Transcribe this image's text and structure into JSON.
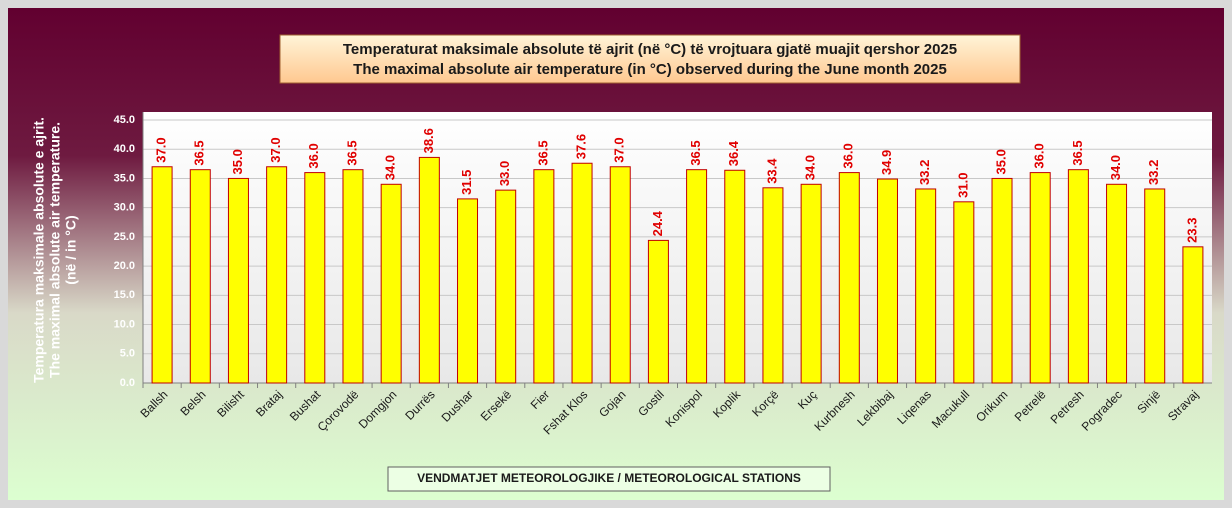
{
  "chart_data": {
    "type": "bar",
    "title": [
      "Temperaturat maksimale absolute të ajrit (në °C) të vrojtuara gjatë muajit qershor 2025",
      "The maximal absolute air temperature (in °C) observed during the June  month 2025"
    ],
    "y_label": [
      "Temperatura maksimale absolute e ajrit.",
      "The maximal absolute air temperature.",
      "(në / in °C)"
    ],
    "x_label": "VENDMATJET  METEOROLOGJIKE / METEOROLOGICAL STATIONS",
    "categories": [
      "Ballsh",
      "Belsh",
      "Bilisht",
      "Brataj",
      "Bushat",
      "Çorovodë",
      "Domgjon",
      "Durrës",
      "Dushar",
      "Ersekë",
      "Fier",
      "Fshat Klos",
      "Gojan",
      "Gostil",
      "Konispol",
      "Koplik",
      "Korçë",
      "Kuç",
      "Kurbnesh",
      "Lekbibaj",
      "Liqenas",
      "Macukull",
      "Orikum",
      "Petrelë",
      "Petresh",
      "Pogradec",
      "Sinjë",
      "Stravaj"
    ],
    "values": [
      37,
      36.5,
      35,
      37,
      36,
      36.5,
      34,
      38.6,
      31.5,
      33,
      36.5,
      37.6,
      37,
      24.4,
      36.5,
      36.4,
      33.4,
      34,
      36,
      34.9,
      33.2,
      31,
      35,
      36,
      36.5,
      34,
      33.2,
      23.3
    ],
    "value_labels": [
      "37.0",
      "36.5",
      "35.0",
      "37.0",
      "36.0",
      "36.5",
      "34.0",
      "38.6",
      "31.5",
      "33.0",
      "36.5",
      "37.6",
      "37.0",
      "24.4",
      "36.5",
      "36.4",
      "33.4",
      "34.0",
      "36.0",
      "34.9",
      "33.2",
      "31.0",
      "35.0",
      "36.0",
      "36.5",
      "34.0",
      "33.2",
      "23.3"
    ],
    "color": "#ffff00",
    "ylim": [
      0,
      45
    ],
    "yticks": [
      {
        "value": 0,
        "label": "0.0"
      },
      {
        "value": 5,
        "label": "5.0"
      },
      {
        "value": 10,
        "label": "10.0"
      },
      {
        "value": 15,
        "label": "15.0"
      },
      {
        "value": 20,
        "label": "20.0"
      },
      {
        "value": 25,
        "label": "25.0"
      },
      {
        "value": 30,
        "label": "30.0"
      },
      {
        "value": 35,
        "label": "35.0"
      },
      {
        "value": 40,
        "label": "40.0"
      },
      {
        "value": 45,
        "label": "45.0"
      }
    ],
    "grid": true
  }
}
